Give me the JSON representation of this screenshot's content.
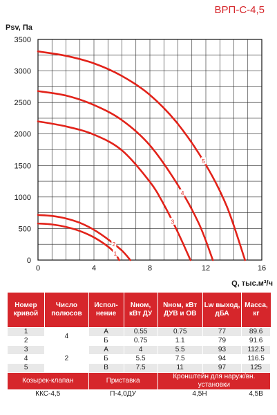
{
  "header": {
    "model": "ВРП-С-4,5"
  },
  "chart_data": {
    "type": "line",
    "ylabel": "Psv, Па",
    "xlabel": "Q, тыс.м³/ч",
    "xlim": [
      0,
      16
    ],
    "ylim": [
      0,
      3500
    ],
    "xticks": [
      0,
      4,
      8,
      12,
      16
    ],
    "yticks": [
      0,
      500,
      1000,
      1500,
      2000,
      2500,
      3000,
      3500
    ],
    "grid": true,
    "series": [
      {
        "name": "1",
        "x": [
          0,
          1,
          2,
          3,
          4,
          5,
          5.5,
          5.8
        ],
        "y": [
          580,
          565,
          525,
          460,
          360,
          215,
          110,
          0
        ]
      },
      {
        "name": "2",
        "x": [
          0,
          1,
          2,
          3,
          4,
          5,
          6,
          6.6
        ],
        "y": [
          715,
          700,
          660,
          590,
          480,
          330,
          150,
          0
        ]
      },
      {
        "name": "3",
        "x": [
          0,
          2,
          4,
          6,
          8,
          9,
          10,
          10.9
        ],
        "y": [
          2200,
          2120,
          1990,
          1740,
          1240,
          880,
          440,
          0
        ]
      },
      {
        "name": "4",
        "x": [
          0,
          2,
          4,
          6,
          8,
          10,
          11.5,
          12.5
        ],
        "y": [
          2680,
          2610,
          2460,
          2220,
          1820,
          1190,
          580,
          0
        ]
      },
      {
        "name": "5",
        "x": [
          0,
          2,
          4,
          6,
          8,
          10,
          12,
          13.5,
          14.8
        ],
        "y": [
          3310,
          3240,
          3120,
          2920,
          2620,
          2160,
          1510,
          850,
          0
        ]
      }
    ]
  },
  "table": {
    "headers": [
      "Номер кривой",
      "Число полюсов",
      "Испол-нение",
      "Nном, кВт ДУ",
      "Nном, кВт ДУВ и ОВ",
      "Lw выход, дБА",
      "Масса, кг"
    ],
    "rows": [
      {
        "curve": "1",
        "poles": "4",
        "exec": "А",
        "n_du": "0.55",
        "n_duv": "0.75",
        "lw": "77",
        "mass": "89.6"
      },
      {
        "curve": "2",
        "poles": "",
        "exec": "Б",
        "n_du": "0.75",
        "n_duv": "1.1",
        "lw": "79",
        "mass": "91.6"
      },
      {
        "curve": "3",
        "poles": "2",
        "exec": "А",
        "n_du": "4",
        "n_duv": "5.5",
        "lw": "93",
        "mass": "112.5"
      },
      {
        "curve": "4",
        "poles": "",
        "exec": "Б",
        "n_du": "5.5",
        "n_duv": "7.5",
        "lw": "94",
        "mass": "116.5"
      },
      {
        "curve": "5",
        "poles": "",
        "exec": "В",
        "n_du": "7.5",
        "n_duv": "11",
        "lw": "97",
        "mass": "125"
      }
    ],
    "accessories": {
      "headers": [
        "Козырек-клапан",
        "Приставка",
        "Кронштейн для наруж/вн. установки"
      ],
      "values": [
        "ККС-4,5",
        "П-4,0ДУ",
        "4,5Н",
        "4,5В"
      ]
    }
  },
  "colors": {
    "curve": "#e2231a",
    "header_bg": "#d6262b",
    "row_band": "#e8e8e8"
  }
}
